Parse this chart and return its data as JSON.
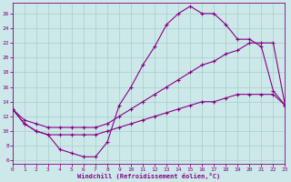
{
  "xlabel": "Windchill (Refroidissement éolien,°C)",
  "bg_color": "#cce8e8",
  "line_color": "#880088",
  "grid_color": "#aacccc",
  "x_ticks": [
    0,
    1,
    2,
    3,
    4,
    5,
    6,
    7,
    8,
    9,
    10,
    11,
    12,
    13,
    14,
    15,
    16,
    17,
    18,
    19,
    20,
    21,
    22,
    23
  ],
  "y_ticks": [
    6,
    8,
    10,
    12,
    14,
    16,
    18,
    20,
    22,
    24,
    26
  ],
  "xlim": [
    0,
    23
  ],
  "ylim": [
    5.5,
    27.5
  ],
  "line1_x": [
    0,
    1,
    2,
    3,
    4,
    5,
    6,
    7,
    8,
    9,
    10,
    11,
    12,
    13,
    14,
    15,
    16,
    17,
    18,
    19,
    20,
    21,
    22,
    23
  ],
  "line1_y": [
    13,
    11,
    10,
    9.5,
    7.5,
    7,
    6.5,
    6.5,
    8.5,
    13.5,
    16,
    19,
    21.5,
    24.5,
    26,
    27,
    26,
    26,
    24.5,
    22.5,
    22.5,
    21.5,
    15.5,
    13.5
  ],
  "line2_x": [
    0,
    1,
    2,
    3,
    4,
    5,
    6,
    7,
    8,
    9,
    10,
    11,
    12,
    13,
    14,
    15,
    16,
    17,
    18,
    19,
    20,
    21,
    22,
    23
  ],
  "line2_y": [
    13,
    11,
    10,
    9.5,
    9.5,
    9.5,
    9.5,
    9.5,
    10,
    10.5,
    11,
    11.5,
    12,
    12.5,
    13,
    13.5,
    14,
    14,
    14.5,
    15,
    15,
    15,
    15,
    13.5
  ],
  "line3_x": [
    0,
    1,
    2,
    3,
    4,
    5,
    6,
    7,
    8,
    9,
    10,
    11,
    12,
    13,
    14,
    15,
    16,
    17,
    18,
    19,
    20,
    21,
    22,
    23
  ],
  "line3_y": [
    13,
    11.5,
    11,
    10.5,
    10.5,
    10.5,
    10.5,
    10.5,
    11,
    12,
    13,
    14,
    15,
    16,
    17,
    18,
    19,
    19.5,
    20.5,
    21,
    22,
    22,
    22,
    13.5
  ]
}
